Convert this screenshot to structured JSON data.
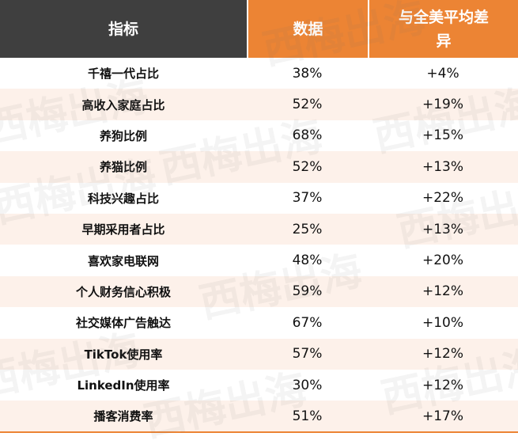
{
  "header": {
    "col1": "指标",
    "col2": "数据",
    "col3": "与全美平均差异"
  },
  "rows": [
    {
      "metric": "千禧一代占比",
      "value": "38%",
      "diff": "+4%"
    },
    {
      "metric": "高收入家庭占比",
      "value": "52%",
      "diff": "+19%"
    },
    {
      "metric": "养狗比例",
      "value": "68%",
      "diff": "+15%"
    },
    {
      "metric": "养猫比例",
      "value": "52%",
      "diff": "+13%"
    },
    {
      "metric": "科技兴趣占比",
      "value": "37%",
      "diff": "+22%"
    },
    {
      "metric": "早期采用者占比",
      "value": "25%",
      "diff": "+13%"
    },
    {
      "metric": "喜欢家电联网",
      "value": "48%",
      "diff": "+20%"
    },
    {
      "metric": "个人财务信心积极",
      "value": "59%",
      "diff": "+12%"
    },
    {
      "metric": "社交媒体广告触达",
      "value": "67%",
      "diff": "+10%"
    },
    {
      "metric": "TikTok使用率",
      "value": "57%",
      "diff": "+12%"
    },
    {
      "metric": "LinkedIn使用率",
      "value": "30%",
      "diff": "+12%"
    },
    {
      "metric": "播客消费率",
      "value": "51%",
      "diff": "+17%"
    }
  ],
  "watermark": "西梅出海",
  "colors": {
    "header_dark": "#3f3f3f",
    "header_accent": "#ec8434",
    "stripe": "#fdf1ea"
  }
}
